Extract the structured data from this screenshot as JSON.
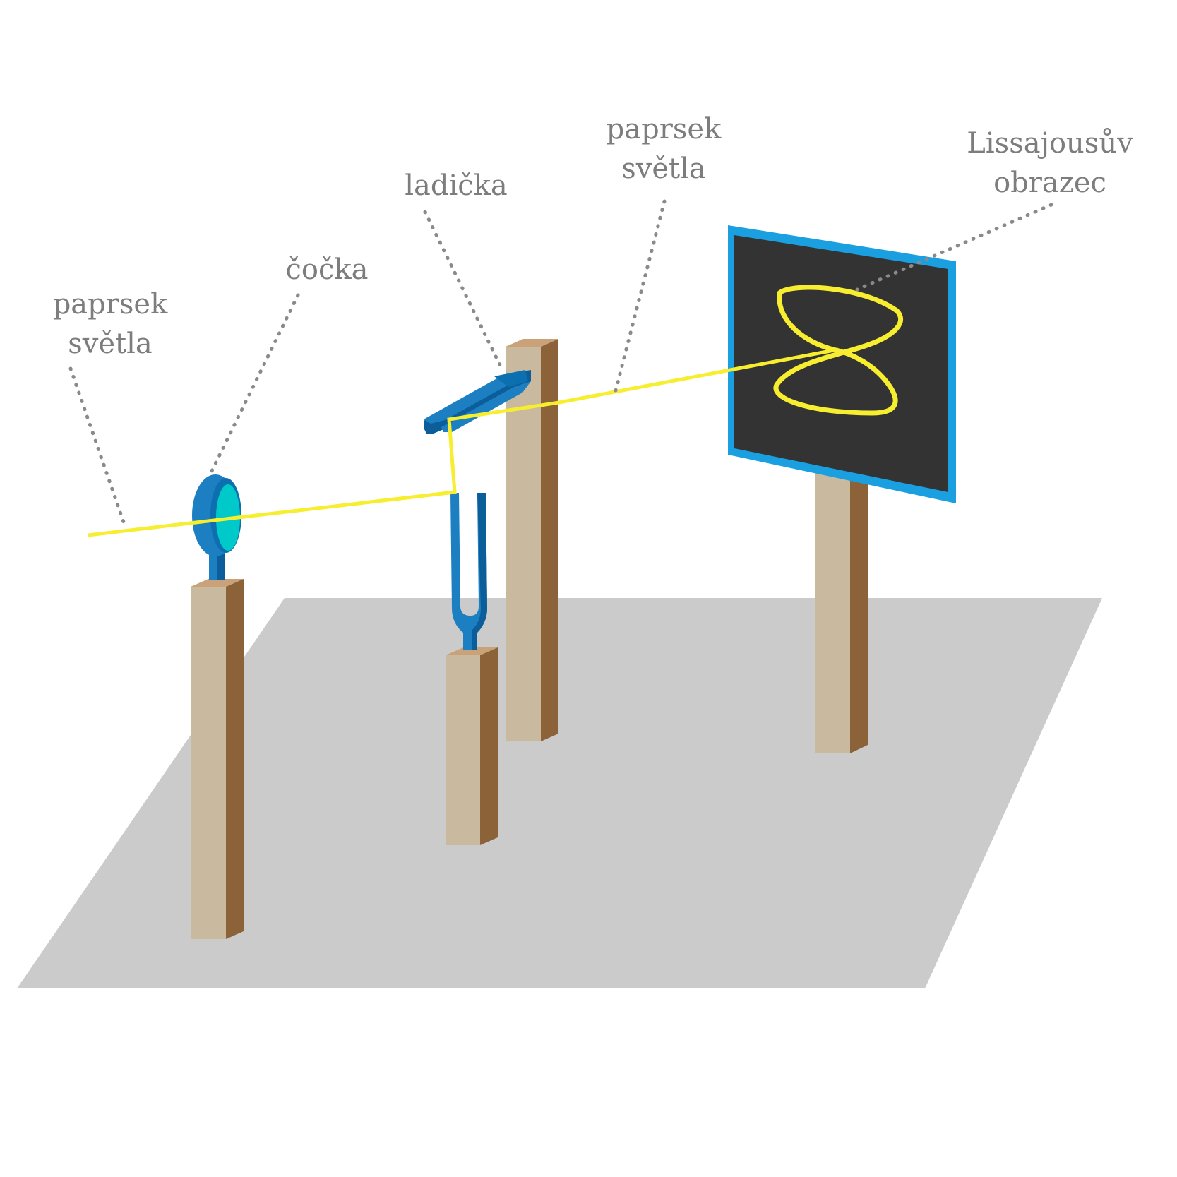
{
  "labels": {
    "beam_left": {
      "line1": "paprsek",
      "line2": "světla"
    },
    "lens": "čočka",
    "tuning_fork": "ladička",
    "beam_right": {
      "line1": "paprsek",
      "line2": "světla"
    },
    "lissajous": {
      "line1": "Lissajousův",
      "line2": "obrazec"
    }
  },
  "colors": {
    "floor": "#cbcbcb",
    "post_front": "#c9b99e",
    "post_side": "#8c6238",
    "post_top": "#c9a27a",
    "fork_blue": "#1b7fc2",
    "fork_dark": "#0b5e99",
    "lens_glass": "#00c9c9",
    "beam": "#f7ee2f",
    "screen_frame": "#1a9fe0",
    "screen_face": "#333333",
    "leader": "#8a8a8a"
  }
}
